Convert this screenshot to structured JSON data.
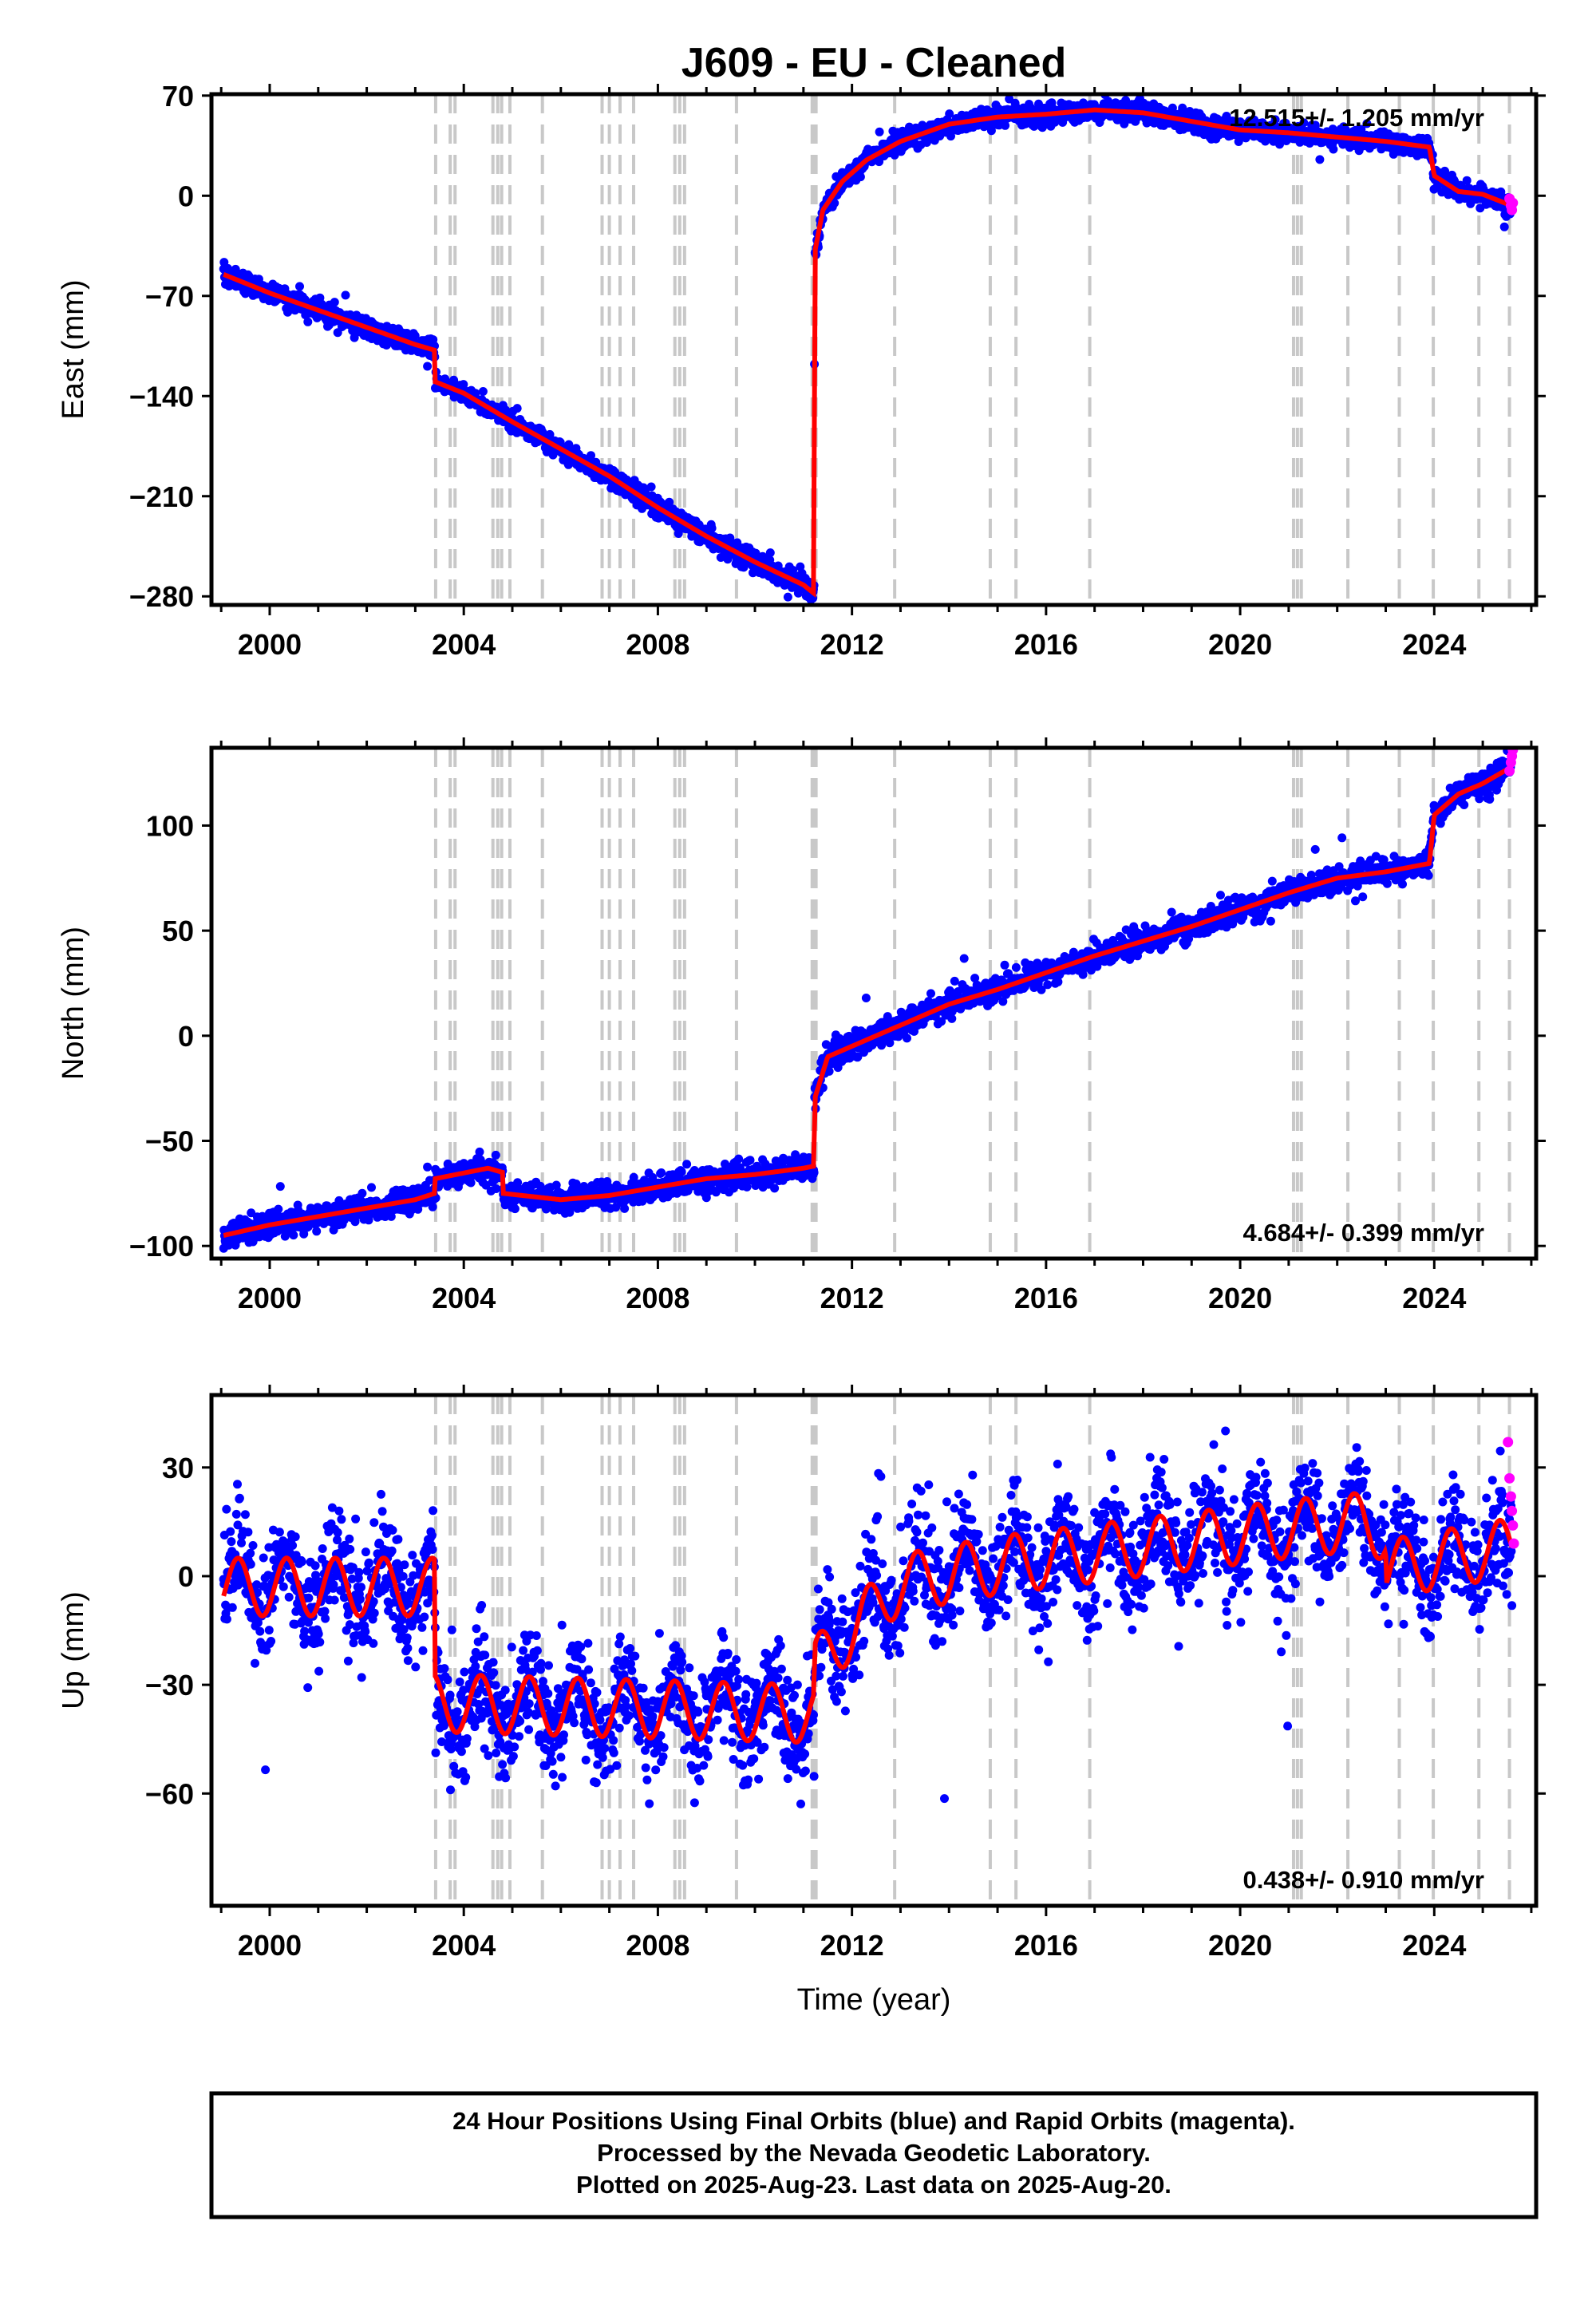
{
  "figure": {
    "title": "J609  - EU - Cleaned",
    "xlabel": "Time (year)",
    "footer": [
      "24 Hour Positions Using Final Orbits (blue) and Rapid Orbits (magenta).",
      "Processed by the Nevada Geodetic Laboratory.",
      "Plotted on 2025-Aug-23. Last data on 2025-Aug-20."
    ],
    "colors": {
      "final": "#0000ff",
      "rapid": "#ff00ff",
      "model": "#ff0000",
      "event_lines": "#c8c8c8"
    }
  },
  "chart_data": [
    {
      "type": "scatter",
      "ylabel": "East (mm)",
      "rate_label": "12.515+/- 1.205 mm/yr",
      "xlim": [
        1998.8,
        2026.1
      ],
      "ylim": [
        -286,
        71
      ],
      "x_ticks": [
        2000,
        2004,
        2008,
        2012,
        2016,
        2020,
        2024
      ],
      "y_ticks": [
        70,
        0,
        -70,
        -140,
        -210,
        -280
      ],
      "tick_labels": [
        "70",
        "0",
        "−70",
        "−140",
        "−210",
        "−280"
      ],
      "model": {
        "x": [
          1999.05,
          2000.0,
          2001.0,
          2002.0,
          2003.0,
          2003.4,
          2003.41,
          2004.0,
          2005.0,
          2006.0,
          2007.0,
          2008.0,
          2009.0,
          2010.0,
          2011.0,
          2011.22,
          2011.23,
          2011.4,
          2011.8,
          2012.3,
          2013.0,
          2014.0,
          2015.0,
          2016.0,
          2017.0,
          2018.0,
          2019.0,
          2020.0,
          2021.0,
          2022.0,
          2023.0,
          2023.9,
          2024.0,
          2024.5,
          2025.0,
          2025.6
        ],
        "y": [
          -55,
          -68,
          -80,
          -92,
          -104,
          -108,
          -130,
          -138,
          -158,
          -177,
          -196,
          -218,
          -238,
          -256,
          -272,
          -278,
          -40,
          -10,
          10,
          25,
          38,
          50,
          55,
          57,
          60,
          58,
          52,
          46,
          44,
          41,
          38,
          34,
          14,
          3,
          1,
          -7
        ]
      },
      "final": {
        "x_range": [
          1999.05,
          2025.6
        ],
        "y_sigma": 3.5
      },
      "rapid": {
        "x": [
          2025.55,
          2025.58,
          2025.6,
          2025.62
        ],
        "y": [
          -2,
          -7,
          -10,
          -5
        ]
      }
    },
    {
      "type": "scatter",
      "ylabel": "North (mm)",
      "rate_label": "4.684+/- 0.399 mm/yr",
      "xlim": [
        1998.8,
        2026.1
      ],
      "ylim": [
        -106,
        137
      ],
      "x_ticks": [
        2000,
        2004,
        2008,
        2012,
        2016,
        2020,
        2024
      ],
      "y_ticks": [
        100,
        50,
        0,
        -50,
        -100
      ],
      "tick_labels": [
        "100",
        "50",
        "0",
        "−50",
        "−100"
      ],
      "model": {
        "x": [
          1999.05,
          2000.0,
          2001.0,
          2002.0,
          2003.0,
          2003.4,
          2003.41,
          2004.5,
          2004.8,
          2004.81,
          2006.0,
          2007.0,
          2008.0,
          2009.0,
          2010.0,
          2011.0,
          2011.22,
          2011.23,
          2011.5,
          2012.0,
          2013.0,
          2014.0,
          2015.0,
          2016.0,
          2017.0,
          2018.0,
          2019.0,
          2020.0,
          2021.0,
          2022.0,
          2023.0,
          2023.9,
          2024.0,
          2024.5,
          2025.0,
          2025.6
        ],
        "y": [
          -95,
          -90,
          -86,
          -82,
          -78,
          -75,
          -68,
          -63,
          -65,
          -75,
          -78,
          -76,
          -72,
          -68,
          -66,
          -63,
          -62,
          -30,
          -10,
          -5,
          5,
          15,
          22,
          30,
          38,
          45,
          52,
          60,
          68,
          75,
          78,
          82,
          105,
          115,
          120,
          128
        ]
      },
      "final": {
        "x_range": [
          1999.05,
          2025.6
        ],
        "y_sigma": 3.0
      },
      "rapid": {
        "x": [
          2025.55,
          2025.58,
          2025.6,
          2025.62
        ],
        "y": [
          126,
          130,
          133,
          136
        ]
      }
    },
    {
      "type": "scatter",
      "ylabel": "Up (mm)",
      "rate_label": "0.438+/- 0.910 mm/yr",
      "xlim": [
        1998.8,
        2026.1
      ],
      "ylim": [
        -91,
        50
      ],
      "x_ticks": [
        2000,
        2004,
        2008,
        2012,
        2016,
        2020,
        2024
      ],
      "y_ticks": [
        30,
        0,
        -30,
        -60
      ],
      "tick_labels": [
        "30",
        "0",
        "−30",
        "−60"
      ],
      "model": {
        "x": [
          1999.05,
          2003.4,
          2003.41,
          2011.22,
          2011.23,
          2012.0,
          2013.0,
          2015.0,
          2018.0,
          2021.0,
          2022.5,
          2023.0,
          2023.01,
          2025.6
        ],
        "y": [
          -3,
          -3,
          -35,
          -38,
          -25,
          -15,
          -2,
          3,
          8,
          13,
          15,
          12,
          2,
          8
        ]
      },
      "seasonal_amplitude": 8,
      "final": {
        "x_range": [
          1999.05,
          2025.6
        ],
        "y_sigma": 7.5
      },
      "rapid": {
        "x": [
          2025.52,
          2025.55,
          2025.58,
          2025.6,
          2025.62,
          2025.64
        ],
        "y": [
          37,
          27,
          22,
          18,
          14,
          9
        ]
      }
    }
  ],
  "event_lines": [
    2003.42,
    2003.72,
    2003.82,
    2004.6,
    2004.7,
    2004.78,
    2004.95,
    2005.62,
    2006.85,
    2007.0,
    2007.22,
    2007.5,
    2008.35,
    2008.45,
    2008.55,
    2009.62,
    2011.18,
    2011.22,
    2011.26,
    2012.88,
    2014.85,
    2015.38,
    2016.9,
    2021.1,
    2021.18,
    2021.26,
    2022.22,
    2023.28,
    2023.98,
    2024.92,
    2025.55
  ]
}
